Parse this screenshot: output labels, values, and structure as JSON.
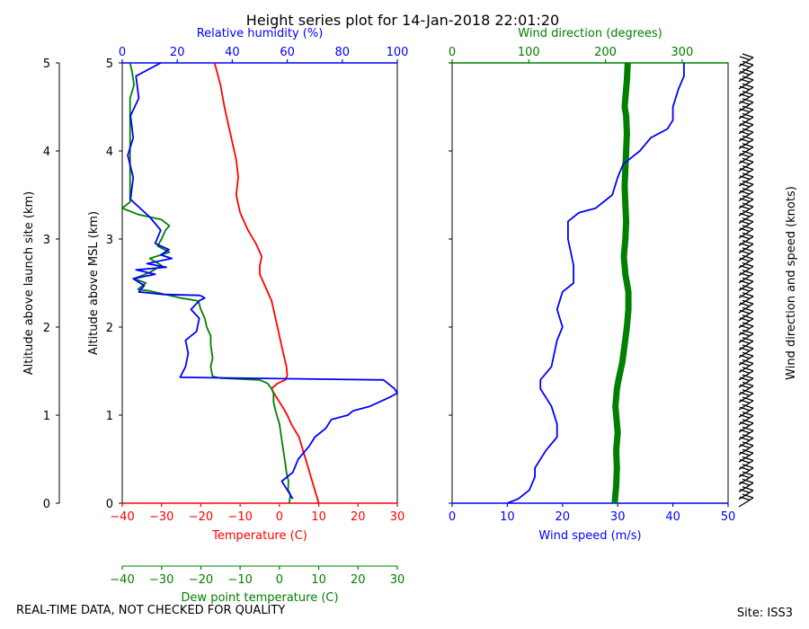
{
  "title": "Height series plot for 14-Jan-2018 22:01:20",
  "footer_left": "REAL-TIME DATA, NOT CHECKED FOR QUALITY",
  "footer_right": "Site: ISS3",
  "colors": {
    "temp": "#ff0000",
    "dew": "#008000",
    "rh": "#0000ff",
    "wspd": "#0000ff",
    "wdir": "#008000",
    "axis": "#000000"
  },
  "chart_data": [
    {
      "type": "line",
      "name": "thermodynamic-profile",
      "ylabel": "Altitude above MSL (km)",
      "ylim": [
        0,
        5
      ],
      "yticks": [
        "0",
        "1",
        "2",
        "3",
        "4",
        "5"
      ],
      "outer_axis": {
        "label": "Altitude above launch site (km)",
        "ticks": [
          "0",
          "1",
          "2",
          "3",
          "4",
          "5"
        ]
      },
      "axes": {
        "temperature": {
          "label": "Temperature (C)",
          "xlim": [
            -40,
            30
          ],
          "ticks": [
            "−40",
            "−30",
            "−20",
            "−10",
            "0",
            "10",
            "20",
            "30"
          ],
          "tickvals": [
            -40,
            -30,
            -20,
            -10,
            0,
            10,
            20,
            30
          ]
        },
        "dewpoint": {
          "label": "Dew point temperature (C)",
          "xlim": [
            -40,
            30
          ],
          "ticks": [
            "−40",
            "−30",
            "−20",
            "−10",
            "0",
            "10",
            "20",
            "30"
          ],
          "tickvals": [
            -40,
            -30,
            -20,
            -10,
            0,
            10,
            20,
            30
          ]
        },
        "rh": {
          "label": "Relative humidity (%)",
          "xlim": [
            0,
            100
          ],
          "ticks": [
            "0",
            "20",
            "40",
            "60",
            "80",
            "100"
          ],
          "tickvals": [
            0,
            20,
            40,
            60,
            80,
            100
          ]
        }
      },
      "series": [
        {
          "name": "Temperature",
          "axis": "temperature",
          "x": [
            10,
            9,
            8,
            7,
            6,
            5,
            3,
            2,
            1,
            0,
            -1,
            -2,
            -0.5,
            1.5,
            2,
            1.8,
            1,
            0.5,
            0,
            -0.5,
            -1,
            -1.5,
            -2,
            -2.5,
            -3,
            -4,
            -5,
            -5,
            -4.5,
            -6,
            -8,
            -10,
            -11,
            -10.5,
            -11,
            -12,
            -13,
            -14,
            -15,
            -16.5
          ],
          "y": [
            0,
            0.15,
            0.3,
            0.45,
            0.6,
            0.75,
            0.9,
            1.0,
            1.08,
            1.15,
            1.22,
            1.3,
            1.36,
            1.4,
            1.45,
            1.55,
            1.7,
            1.8,
            1.9,
            2.0,
            2.1,
            2.2,
            2.3,
            2.35,
            2.4,
            2.5,
            2.6,
            2.7,
            2.8,
            2.95,
            3.1,
            3.3,
            3.5,
            3.7,
            3.9,
            4.1,
            4.3,
            4.5,
            4.75,
            5.0
          ]
        },
        {
          "name": "Dew point",
          "axis": "dewpoint",
          "x": [
            2.5,
            2.8,
            2.2,
            2.3,
            1.8,
            1.5,
            1.0,
            0.5,
            0.0,
            -1.0,
            -1.5,
            -1.5,
            -2,
            -3,
            -5,
            -15,
            -17,
            -17.5,
            -17,
            -17.5,
            -17.5,
            -18.5,
            -19,
            -20,
            -20.5,
            -21,
            -25,
            -30,
            -33,
            -36,
            -34,
            -37,
            -33,
            -30,
            -33,
            -28,
            -31,
            -30,
            -29,
            -28,
            -30,
            -36,
            -40,
            -38,
            -38,
            -37,
            -37.5,
            -38
          ],
          "y": [
            0,
            0.1,
            0.15,
            0.25,
            0.35,
            0.45,
            0.6,
            0.75,
            0.9,
            1.05,
            1.15,
            1.25,
            1.3,
            1.36,
            1.4,
            1.42,
            1.44,
            1.55,
            1.65,
            1.8,
            1.9,
            2.0,
            2.1,
            2.2,
            2.28,
            2.3,
            2.33,
            2.38,
            2.41,
            2.43,
            2.5,
            2.55,
            2.62,
            2.7,
            2.78,
            2.85,
            2.92,
            3.0,
            3.1,
            3.15,
            3.22,
            3.28,
            3.35,
            3.42,
            4.6,
            4.75,
            4.9,
            5.0
          ]
        },
        {
          "name": "Relative humidity",
          "axis": "rh",
          "x": [
            62,
            60,
            58,
            62,
            64,
            68,
            70,
            74,
            76,
            82,
            84,
            90,
            97,
            100,
            99,
            95,
            21,
            23,
            24,
            23,
            27,
            28,
            25,
            28,
            30,
            29,
            28,
            15,
            6,
            8,
            4,
            12,
            5,
            16,
            9,
            18,
            14,
            17,
            12,
            14,
            10,
            3,
            4,
            2,
            4,
            3,
            6,
            5,
            14
          ],
          "y": [
            0.05,
            0.15,
            0.25,
            0.35,
            0.5,
            0.65,
            0.75,
            0.85,
            0.95,
            1.0,
            1.05,
            1.1,
            1.2,
            1.25,
            1.3,
            1.4,
            1.43,
            1.55,
            1.7,
            1.85,
            1.95,
            2.1,
            2.2,
            2.3,
            2.33,
            2.35,
            2.36,
            2.37,
            2.4,
            2.47,
            2.55,
            2.6,
            2.65,
            2.68,
            2.72,
            2.78,
            2.82,
            2.88,
            2.95,
            3.1,
            3.25,
            3.45,
            3.7,
            3.95,
            4.15,
            4.4,
            4.6,
            4.85,
            5.0
          ]
        }
      ]
    },
    {
      "type": "line",
      "name": "wind-profile",
      "ylim": [
        0,
        5
      ],
      "axes": {
        "wind_speed": {
          "label": "Wind speed (m/s)",
          "xlim": [
            0,
            50
          ],
          "ticks": [
            "0",
            "10",
            "20",
            "30",
            "40",
            "50"
          ],
          "tickvals": [
            0,
            10,
            20,
            30,
            40,
            50
          ]
        },
        "wind_direction": {
          "label": "Wind direction (degrees)",
          "xlim": [
            0,
            360
          ],
          "ticks": [
            "0",
            "100",
            "200",
            "300"
          ],
          "tickvals": [
            0,
            100,
            200,
            300
          ]
        }
      },
      "series": [
        {
          "name": "Wind speed",
          "axis": "wind_speed",
          "x": [
            10,
            12,
            14,
            15,
            15,
            17,
            19,
            19,
            18,
            16,
            16,
            18,
            19,
            20,
            19,
            20,
            22,
            22,
            21,
            21,
            23,
            26,
            29,
            30,
            31,
            34,
            36,
            39,
            40,
            40,
            41,
            42,
            42
          ],
          "y": [
            0,
            0.05,
            0.15,
            0.3,
            0.4,
            0.6,
            0.75,
            0.9,
            1.1,
            1.3,
            1.4,
            1.55,
            1.85,
            2.0,
            2.2,
            2.4,
            2.5,
            2.7,
            3.0,
            3.2,
            3.3,
            3.35,
            3.5,
            3.7,
            3.85,
            4.0,
            4.15,
            4.25,
            4.35,
            4.5,
            4.7,
            4.85,
            5.0
          ]
        },
        {
          "name": "Wind direction",
          "axis": "wind_direction",
          "x": [
            212,
            214,
            215,
            214,
            216,
            214,
            213,
            214,
            215,
            217,
            222,
            225,
            228,
            230,
            230,
            226,
            224,
            226,
            227,
            226,
            225,
            226,
            227,
            228,
            227,
            225,
            226,
            228,
            229
          ],
          "y": [
            0,
            0.2,
            0.4,
            0.6,
            0.8,
            1.0,
            1.1,
            1.2,
            1.3,
            1.4,
            1.6,
            1.8,
            2.0,
            2.2,
            2.4,
            2.6,
            2.8,
            3.0,
            3.2,
            3.4,
            3.6,
            3.8,
            4.0,
            4.2,
            4.4,
            4.5,
            4.6,
            4.8,
            5.0
          ]
        }
      ],
      "right_axis": {
        "label": "Wind direction and speed (knots)"
      },
      "barbs_count": 60
    }
  ]
}
